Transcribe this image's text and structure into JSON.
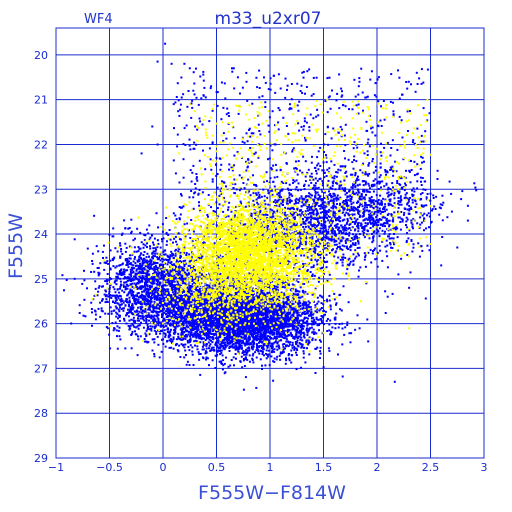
{
  "chart_data": {
    "type": "scatter",
    "title": "m33_u2xr07",
    "subtitle": "WF4",
    "xlabel": "F555W−F814W",
    "ylabel": "F555W",
    "xlim": [
      -1,
      3
    ],
    "ylim": [
      29,
      19.4
    ],
    "y_inverted": true,
    "grid": true,
    "x_ticks": [
      -1,
      -0.5,
      0,
      0.5,
      1,
      1.5,
      2,
      2.5,
      3
    ],
    "x_tick_labels": [
      "−1",
      "−0.5",
      "0",
      "0.5",
      "1",
      "1.5",
      "2",
      "2.5",
      "3"
    ],
    "y_ticks": [
      20,
      21,
      22,
      23,
      24,
      25,
      26,
      27,
      28,
      29
    ],
    "y_tick_labels": [
      "20",
      "21",
      "22",
      "23",
      "24",
      "25",
      "26",
      "27",
      "28",
      "29"
    ],
    "series": [
      {
        "color": "#0000ff",
        "point_count": 9000,
        "points": [
          [
            0.02,
            19.75
          ],
          [
            -0.05,
            20.15
          ],
          [
            0.08,
            20.2
          ],
          [
            0.2,
            20.2
          ],
          [
            0.25,
            20.3
          ],
          [
            0.7,
            20.5
          ],
          [
            0.78,
            20.6
          ],
          [
            1.1,
            20.75
          ],
          [
            1.3,
            20.85
          ],
          [
            1.55,
            20.95
          ],
          [
            1.9,
            20.95
          ],
          [
            0.1,
            21.1
          ],
          [
            0.6,
            21.2
          ],
          [
            1.2,
            21.2
          ],
          [
            1.45,
            21.35
          ],
          [
            -0.1,
            21.6
          ],
          [
            0.3,
            21.6
          ],
          [
            0.9,
            21.7
          ],
          [
            1.7,
            21.8
          ],
          [
            -0.05,
            22.0
          ],
          [
            -0.2,
            22.2
          ],
          [
            0.5,
            22.3
          ],
          [
            1.5,
            22.4
          ],
          [
            2.25,
            22.95
          ],
          [
            2.35,
            23.05
          ],
          [
            2.5,
            23.1
          ],
          [
            2.7,
            23.5
          ],
          [
            2.85,
            23.7
          ],
          [
            2.62,
            23.3
          ],
          [
            2.15,
            22.6
          ],
          [
            -0.6,
            25.2
          ],
          [
            -0.5,
            25.4
          ],
          [
            -0.4,
            25.0
          ],
          [
            -0.55,
            24.8
          ],
          [
            -0.3,
            25.7
          ],
          [
            0.0,
            25.6
          ],
          [
            0.4,
            26.0
          ],
          [
            0.7,
            26.2
          ],
          [
            1.0,
            26.1
          ],
          [
            1.2,
            26.0
          ],
          [
            1.4,
            25.8
          ],
          [
            0.6,
            26.4
          ],
          [
            0.9,
            26.5
          ],
          [
            1.25,
            26.7
          ],
          [
            0.3,
            26.1
          ],
          [
            1.6,
            24.5
          ],
          [
            1.8,
            24.2
          ],
          [
            2.0,
            23.8
          ],
          [
            1.7,
            23.9
          ],
          [
            1.55,
            23.6
          ],
          [
            2.05,
            24.6
          ],
          [
            2.2,
            24.9
          ],
          [
            2.3,
            25.2
          ],
          [
            2.1,
            25.4
          ],
          [
            1.9,
            25.1
          ],
          [
            2.6,
            24.7
          ],
          [
            2.75,
            24.3
          ],
          [
            0.05,
            24.6
          ],
          [
            0.2,
            24.3
          ],
          [
            -0.15,
            23.9
          ]
        ]
      },
      {
        "color": "#ffff00",
        "point_count": 4200,
        "points": [
          [
            0.6,
            24.5
          ],
          [
            0.8,
            24.3
          ],
          [
            1.0,
            24.6
          ],
          [
            1.1,
            24.2
          ],
          [
            0.95,
            24.9
          ],
          [
            0.7,
            23.8
          ],
          [
            0.85,
            23.5
          ],
          [
            0.5,
            24.1
          ],
          [
            1.2,
            23.9
          ],
          [
            0.4,
            24.7
          ],
          [
            0.75,
            25.1
          ],
          [
            0.9,
            25.3
          ],
          [
            0.3,
            25.4
          ],
          [
            0.2,
            24.9
          ],
          [
            0.0,
            24.5
          ],
          [
            1.3,
            24.6
          ],
          [
            1.45,
            24.2
          ],
          [
            0.35,
            23.1
          ],
          [
            0.55,
            22.6
          ],
          [
            0.95,
            22.8
          ],
          [
            0.65,
            21.6
          ],
          [
            0.25,
            21.1
          ],
          [
            1.05,
            21.7
          ],
          [
            0.15,
            22.2
          ],
          [
            1.7,
            21.9
          ],
          [
            1.9,
            22.3
          ],
          [
            2.2,
            23.0
          ],
          [
            2.35,
            23.2
          ],
          [
            2.3,
            24.5
          ],
          [
            2.05,
            24.1
          ],
          [
            1.85,
            25.5
          ],
          [
            1.5,
            25.1
          ],
          [
            0.6,
            25.8
          ],
          [
            0.85,
            26.0
          ],
          [
            1.0,
            25.6
          ],
          [
            0.15,
            25.9
          ],
          [
            1.15,
            26.2
          ],
          [
            2.4,
            24.1
          ],
          [
            2.45,
            23.7
          ],
          [
            0.45,
            21.4
          ],
          [
            -0.3,
            24.3
          ],
          [
            1.75,
            24.5
          ],
          [
            2.3,
            26.1
          ],
          [
            1.45,
            26.3
          ],
          [
            0.95,
            26.4
          ]
        ]
      }
    ]
  }
}
